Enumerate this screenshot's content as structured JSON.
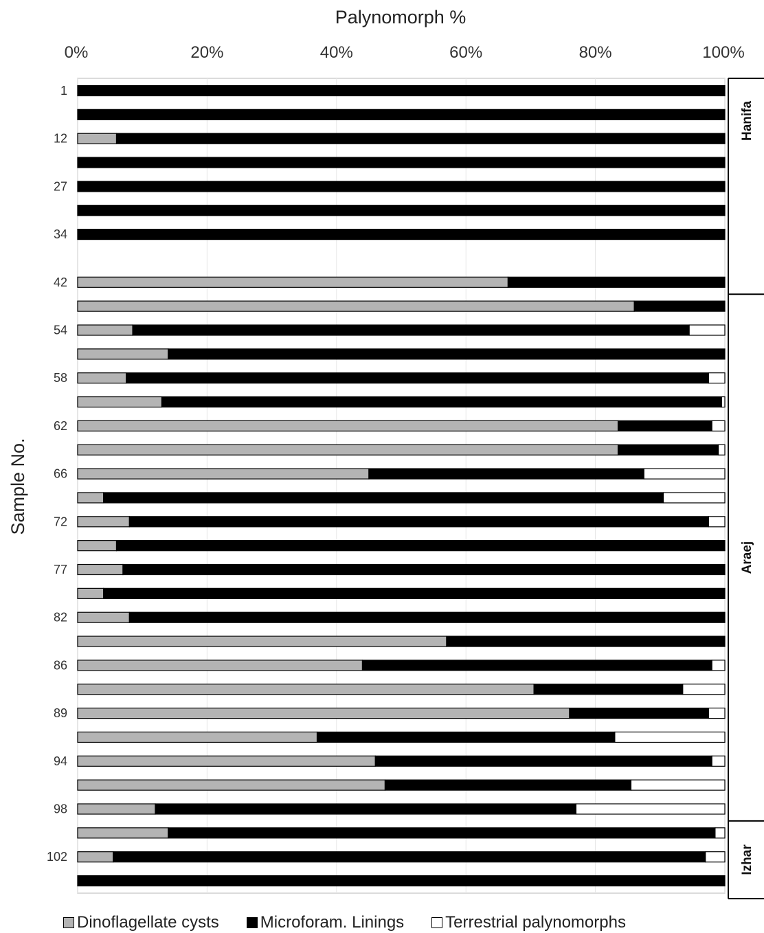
{
  "chart_data": {
    "type": "bar",
    "orientation": "horizontal",
    "stacked": true,
    "title": "Palynomorph %",
    "ylabel": "Sample No.",
    "xlim": [
      0,
      100
    ],
    "x_ticks": [
      "0%",
      "20%",
      "40%",
      "60%",
      "80%",
      "100%"
    ],
    "grid": true,
    "legend_position": "bottom",
    "categories": [
      "1",
      "",
      "12",
      "",
      "27",
      "",
      "34",
      "",
      "42",
      "",
      "54",
      "",
      "58",
      "",
      "62",
      "",
      "66",
      "",
      "72",
      "",
      "77",
      "",
      "82",
      "",
      "86",
      "",
      "89",
      "",
      "94",
      "",
      "98",
      "",
      "102",
      ""
    ],
    "series": [
      {
        "name": "Dinoflagellate cysts",
        "color": "#b4b4b4",
        "values": [
          0,
          0,
          6,
          0,
          0,
          0,
          0,
          null,
          66.5,
          86,
          8.5,
          14,
          7.5,
          13,
          83.5,
          83.5,
          45,
          4,
          8,
          6,
          7,
          4,
          8,
          57,
          44,
          70.5,
          76,
          37,
          46,
          47.5,
          12,
          14,
          5.5,
          0
        ]
      },
      {
        "name": "Microforam. Linings",
        "color": "#000000",
        "values": [
          100,
          100,
          94,
          100,
          100,
          100,
          100,
          null,
          33.5,
          14,
          86,
          86,
          90,
          86.5,
          14.5,
          15.5,
          42.5,
          86.5,
          89.5,
          94,
          93,
          96,
          92,
          43,
          54,
          23,
          21.5,
          46,
          52,
          38,
          65,
          84.5,
          91.5,
          100
        ]
      },
      {
        "name": "Terrestrial palynomorphs",
        "color": "#ffffff",
        "values": [
          0,
          0,
          0,
          0,
          0,
          0,
          0,
          null,
          0,
          0,
          5.5,
          0,
          2.5,
          0.5,
          2,
          1,
          12.5,
          9.5,
          2.5,
          0,
          0,
          0,
          0,
          0,
          2,
          6.5,
          2.5,
          17,
          2,
          14.5,
          23,
          1.5,
          3,
          0
        ]
      }
    ],
    "formations": [
      {
        "name": "Hanifa",
        "from": 0,
        "to": 8
      },
      {
        "name": "Araej",
        "from": 9,
        "to": 30
      },
      {
        "name": "Izhar",
        "from": 31,
        "to": 33
      }
    ]
  }
}
